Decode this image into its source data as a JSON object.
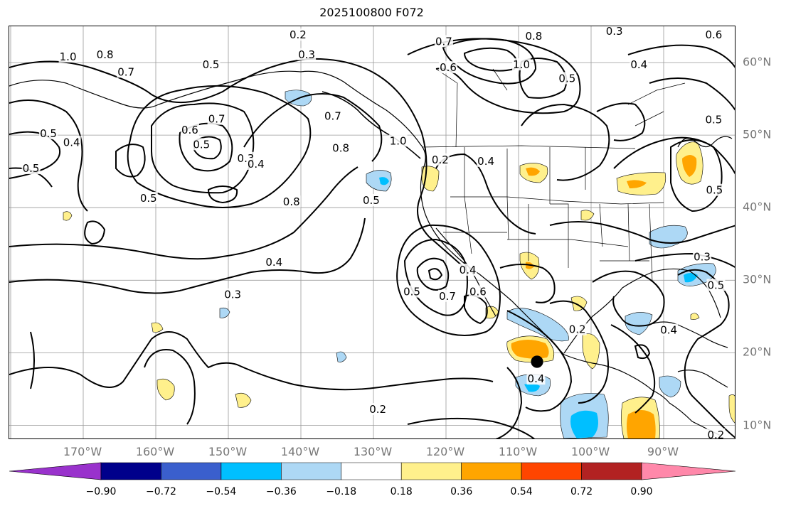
{
  "title": "2025100800 F072",
  "lon_labels": [
    {
      "text": "170°W",
      "lon": -170
    },
    {
      "text": "160°W",
      "lon": -160
    },
    {
      "text": "150°W",
      "lon": -150
    },
    {
      "text": "140°W",
      "lon": -140
    },
    {
      "text": "130°W",
      "lon": -130
    },
    {
      "text": "120°W",
      "lon": -120
    },
    {
      "text": "110°W",
      "lon": -110
    },
    {
      "text": "100°W",
      "lon": -100
    },
    {
      "text": "90°W",
      "lon": -90
    }
  ],
  "lat_labels": [
    {
      "text": "60°N",
      "lat": 60
    },
    {
      "text": "50°N",
      "lat": 50
    },
    {
      "text": "40°N",
      "lat": 40
    },
    {
      "text": "30°N",
      "lat": 30
    },
    {
      "text": "20°N",
      "lat": 20
    },
    {
      "text": "10°N",
      "lat": 10
    }
  ],
  "colorbar": {
    "colors": [
      "#9932cc",
      "#00008b",
      "#3a5fcd",
      "#00bfff",
      "#add8f5",
      "#ffffff",
      "#fff08c",
      "#ffa500",
      "#ff4500",
      "#b22222",
      "#ff88aa"
    ],
    "labels": [
      "−0.90",
      "−0.72",
      "−0.54",
      "−0.36",
      "−0.18",
      "0.18",
      "0.36",
      "0.54",
      "0.72",
      "0.90"
    ]
  },
  "contour_labels": [
    {
      "text": "0.2",
      "lon": -140.4,
      "lat": 63.8
    },
    {
      "text": "0.3",
      "lon": -139.2,
      "lat": 61.1
    },
    {
      "text": "0.7",
      "lon": -120.3,
      "lat": 62.9
    },
    {
      "text": "0.8",
      "lon": -107.9,
      "lat": 63.6
    },
    {
      "text": "1.0",
      "lon": -109.6,
      "lat": 59.7
    },
    {
      "text": "0.6",
      "lon": -119.7,
      "lat": 59.3
    },
    {
      "text": "0.3",
      "lon": -96.8,
      "lat": 64.3
    },
    {
      "text": "0.4",
      "lon": -93.4,
      "lat": 59.7
    },
    {
      "text": "0.5",
      "lon": -103.3,
      "lat": 57.8
    },
    {
      "text": "0.6",
      "lon": -83.1,
      "lat": 63.8
    },
    {
      "text": "0.5",
      "lon": -83.1,
      "lat": 52.1
    },
    {
      "text": "1.0",
      "lon": -172.1,
      "lat": 60.8
    },
    {
      "text": "0.8",
      "lon": -167.0,
      "lat": 61.1
    },
    {
      "text": "0.7",
      "lon": -164.1,
      "lat": 58.7
    },
    {
      "text": "0.5",
      "lon": -152.4,
      "lat": 59.7
    },
    {
      "text": "0.5",
      "lon": -174.8,
      "lat": 50.2
    },
    {
      "text": "0.4",
      "lon": -171.6,
      "lat": 49.0
    },
    {
      "text": "0.5",
      "lon": -177.2,
      "lat": 45.4
    },
    {
      "text": "0.5",
      "lon": -161.0,
      "lat": 41.3
    },
    {
      "text": "0.6",
      "lon": -155.3,
      "lat": 50.7
    },
    {
      "text": "0.7",
      "lon": -151.6,
      "lat": 52.2
    },
    {
      "text": "0.5",
      "lon": -153.7,
      "lat": 48.7
    },
    {
      "text": "0.3",
      "lon": -147.6,
      "lat": 46.8
    },
    {
      "text": "0.4",
      "lon": -146.2,
      "lat": 46.0
    },
    {
      "text": "0.7",
      "lon": -135.6,
      "lat": 52.6
    },
    {
      "text": "0.8",
      "lon": -134.5,
      "lat": 48.2
    },
    {
      "text": "0.8",
      "lon": -141.3,
      "lat": 40.8
    },
    {
      "text": "0.5",
      "lon": -130.3,
      "lat": 41.0
    },
    {
      "text": "1.0",
      "lon": -126.6,
      "lat": 49.2
    },
    {
      "text": "0.2",
      "lon": -120.8,
      "lat": 46.6
    },
    {
      "text": "0.4",
      "lon": -114.5,
      "lat": 46.4
    },
    {
      "text": "0.4",
      "lon": -143.7,
      "lat": 32.5
    },
    {
      "text": "0.3",
      "lon": -149.4,
      "lat": 28.0
    },
    {
      "text": "0.5",
      "lon": -124.7,
      "lat": 28.4
    },
    {
      "text": "0.7",
      "lon": -119.8,
      "lat": 27.8
    },
    {
      "text": "0.6",
      "lon": -115.6,
      "lat": 28.4
    },
    {
      "text": "0.4",
      "lon": -117.0,
      "lat": 31.4
    },
    {
      "text": "0.2",
      "lon": -101.9,
      "lat": 23.2
    },
    {
      "text": "0.4",
      "lon": -107.6,
      "lat": 16.4
    },
    {
      "text": "0.2",
      "lon": -129.4,
      "lat": 12.2
    },
    {
      "text": "0.3",
      "lon": -84.7,
      "lat": 33.2
    },
    {
      "text": "0.5",
      "lon": -82.8,
      "lat": 29.3
    },
    {
      "text": "0.4",
      "lon": -89.3,
      "lat": 23.1
    },
    {
      "text": "0.2",
      "lon": -82.8,
      "lat": 8.7
    },
    {
      "text": "0.5",
      "lon": -83.0,
      "lat": 42.4
    }
  ]
}
